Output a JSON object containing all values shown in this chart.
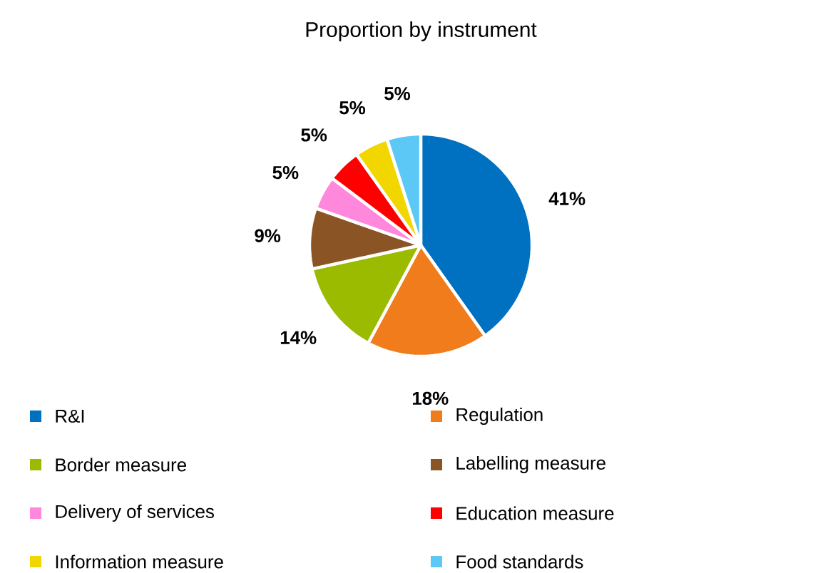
{
  "chart_data": {
    "type": "pie",
    "title": "Proportion by instrument",
    "categories": [
      "R&I",
      "Regulation",
      "Border measure",
      "Labelling measure",
      "Delivery of services",
      "Education measure",
      "Information measure",
      "Food standards"
    ],
    "values": [
      41,
      18,
      14,
      9,
      5,
      5,
      5,
      5
    ],
    "colors": [
      "#0070c0",
      "#f07c1b",
      "#9bbb00",
      "#8b5424",
      "#ff88dd",
      "#ff0000",
      "#f2d600",
      "#5bc8f5"
    ],
    "value_labels": [
      "41%",
      "18%",
      "14%",
      "9%",
      "5%",
      "5%",
      "5%",
      "5%"
    ],
    "legend": "bottom"
  }
}
